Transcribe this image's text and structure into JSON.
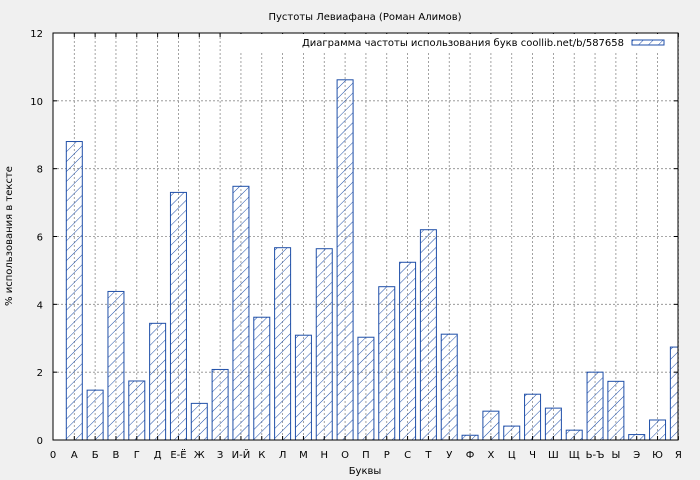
{
  "chart_data": {
    "type": "bar",
    "title": "Пустоты Левиафана (Роман Алимов)",
    "xlabel": "Буквы",
    "ylabel": "% использования в тексте",
    "ylim": [
      0,
      12
    ],
    "yticks": [
      0,
      2,
      4,
      6,
      8,
      10,
      12
    ],
    "x_origin_label": "0",
    "grid": true,
    "legend_position": "top-right",
    "bar_color": "#1f4fa8",
    "categories": [
      "А",
      "Б",
      "В",
      "Г",
      "Д",
      "Е-Ё",
      "Ж",
      "З",
      "И-Й",
      "К",
      "Л",
      "М",
      "Н",
      "О",
      "П",
      "Р",
      "С",
      "Т",
      "У",
      "Ф",
      "Х",
      "Ц",
      "Ч",
      "Ш",
      "Щ",
      "Ь-Ъ",
      "Ы",
      "Э",
      "Ю",
      "Я"
    ],
    "series": [
      {
        "name": "Диаграмма частоты использования букв coollib.net/b/587658",
        "values": [
          8.8,
          1.47,
          4.38,
          1.74,
          3.44,
          7.3,
          1.08,
          2.08,
          7.48,
          3.62,
          5.67,
          3.09,
          5.64,
          10.62,
          3.03,
          4.52,
          5.24,
          6.2,
          3.12,
          0.14,
          0.85,
          0.41,
          1.35,
          0.94,
          0.29,
          2.0,
          1.73,
          0.16,
          0.59,
          2.74
        ]
      }
    ]
  }
}
